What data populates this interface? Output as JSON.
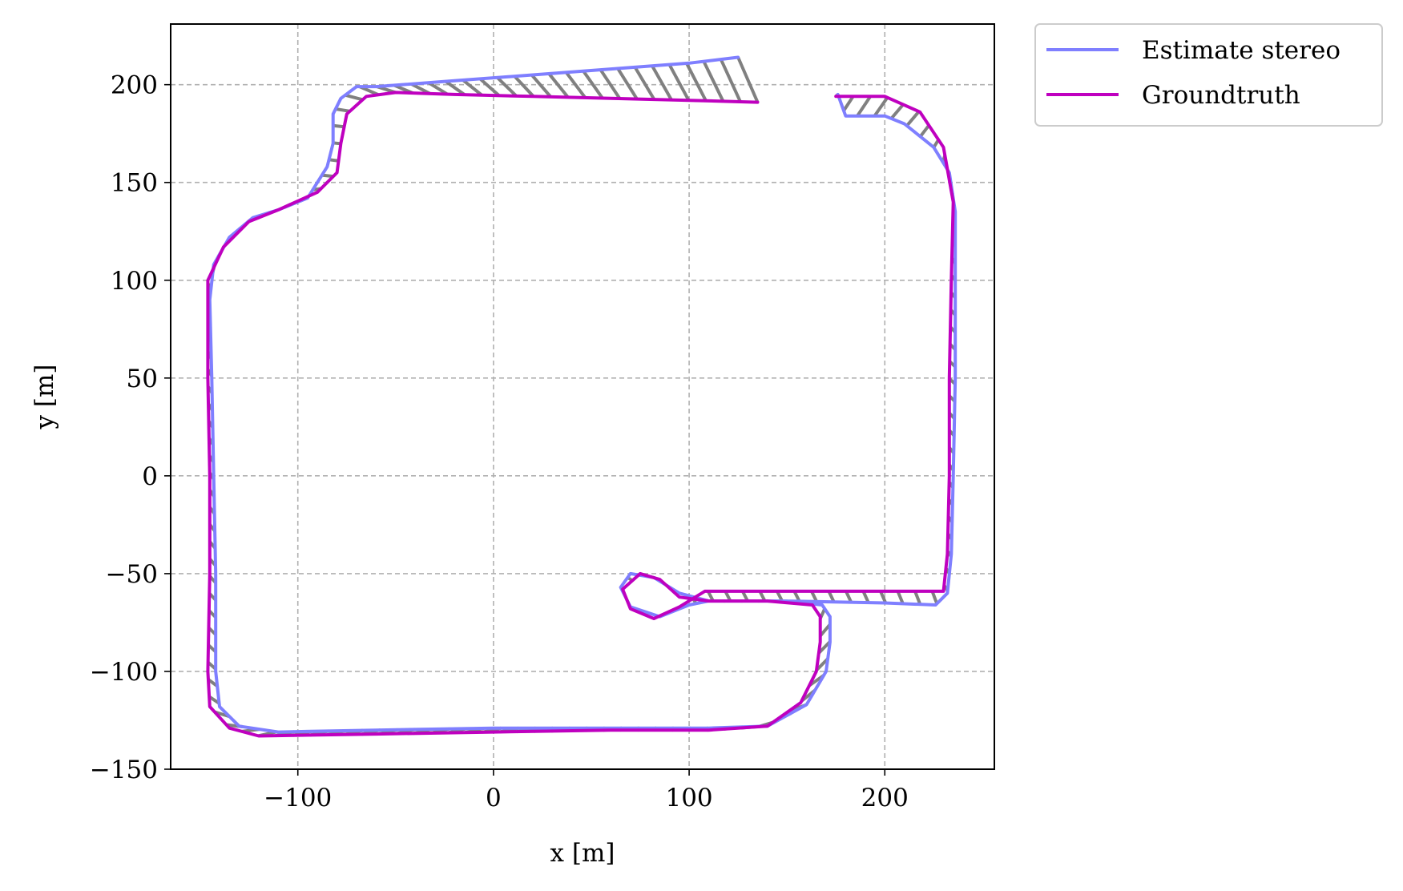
{
  "chart_data": {
    "type": "line",
    "xlabel": "x [m]",
    "ylabel": "y [m]",
    "xlim": [
      -165,
      256
    ],
    "ylim": [
      -150,
      231
    ],
    "xticks": [
      -100,
      0,
      100,
      200
    ],
    "yticks": [
      -150,
      -100,
      -50,
      0,
      50,
      100,
      150,
      200
    ],
    "xtick_labels": [
      "−100",
      "0",
      "100",
      "200"
    ],
    "ytick_labels": [
      "−150",
      "−100",
      "−50",
      "0",
      "50",
      "100",
      "150",
      "200"
    ],
    "grid": true,
    "legend_position": "outside-top-right",
    "error_color": "#808080",
    "series": [
      {
        "name": "Estimate stereo",
        "color": "#7f7fff",
        "points": [
          [
            125,
            214
          ],
          [
            100,
            211
          ],
          [
            60,
            208
          ],
          [
            20,
            205
          ],
          [
            -20,
            202
          ],
          [
            -60,
            199
          ],
          [
            -70,
            199
          ],
          [
            -78,
            193
          ],
          [
            -82,
            185
          ],
          [
            -82,
            170
          ],
          [
            -85,
            158
          ],
          [
            -95,
            142
          ],
          [
            -110,
            136
          ],
          [
            -123,
            132
          ],
          [
            -135,
            122
          ],
          [
            -143,
            108
          ],
          [
            -145,
            90
          ],
          [
            -144,
            50
          ],
          [
            -143,
            0
          ],
          [
            -142,
            -50
          ],
          [
            -142,
            -100
          ],
          [
            -140,
            -118
          ],
          [
            -130,
            -128
          ],
          [
            -110,
            -131
          ],
          [
            -60,
            -130
          ],
          [
            0,
            -129
          ],
          [
            60,
            -129
          ],
          [
            110,
            -129
          ],
          [
            140,
            -128
          ],
          [
            160,
            -117
          ],
          [
            170,
            -100
          ],
          [
            172,
            -85
          ],
          [
            172,
            -72
          ],
          [
            168,
            -66
          ],
          [
            150,
            -64
          ],
          [
            110,
            -64
          ],
          [
            95,
            -60
          ],
          [
            82,
            -52
          ],
          [
            70,
            -50
          ],
          [
            65,
            -57
          ],
          [
            70,
            -67
          ],
          [
            85,
            -72
          ],
          [
            100,
            -66
          ],
          [
            110,
            -64
          ],
          [
            150,
            -64
          ],
          [
            200,
            -65
          ],
          [
            226,
            -66
          ],
          [
            232,
            -60
          ],
          [
            234,
            -40
          ],
          [
            235,
            0
          ],
          [
            236,
            50
          ],
          [
            236,
            100
          ],
          [
            236,
            135
          ],
          [
            233,
            155
          ],
          [
            225,
            168
          ],
          [
            210,
            180
          ],
          [
            200,
            184
          ],
          [
            180,
            184
          ],
          [
            176,
            195
          ]
        ]
      },
      {
        "name": "Groundtruth",
        "color": "#bf00bf",
        "points": [
          [
            135,
            191
          ],
          [
            100,
            192
          ],
          [
            60,
            193
          ],
          [
            20,
            194
          ],
          [
            -20,
            195
          ],
          [
            -50,
            196
          ],
          [
            -65,
            194
          ],
          [
            -75,
            185
          ],
          [
            -78,
            170
          ],
          [
            -80,
            155
          ],
          [
            -90,
            145
          ],
          [
            -110,
            136
          ],
          [
            -125,
            130
          ],
          [
            -138,
            117
          ],
          [
            -146,
            100
          ],
          [
            -146,
            50
          ],
          [
            -145,
            0
          ],
          [
            -145,
            -50
          ],
          [
            -146,
            -100
          ],
          [
            -145,
            -118
          ],
          [
            -135,
            -129
          ],
          [
            -120,
            -133
          ],
          [
            -60,
            -132
          ],
          [
            0,
            -131
          ],
          [
            60,
            -130
          ],
          [
            110,
            -130
          ],
          [
            140,
            -128
          ],
          [
            157,
            -116
          ],
          [
            165,
            -100
          ],
          [
            167,
            -85
          ],
          [
            167,
            -72
          ],
          [
            163,
            -66
          ],
          [
            140,
            -64
          ],
          [
            110,
            -64
          ],
          [
            95,
            -62
          ],
          [
            85,
            -53
          ],
          [
            75,
            -50
          ],
          [
            66,
            -58
          ],
          [
            70,
            -68
          ],
          [
            82,
            -73
          ],
          [
            95,
            -67
          ],
          [
            108,
            -59
          ],
          [
            150,
            -59
          ],
          [
            200,
            -59
          ],
          [
            230,
            -59
          ],
          [
            232,
            -40
          ],
          [
            233,
            0
          ],
          [
            233,
            50
          ],
          [
            234,
            100
          ],
          [
            235,
            140
          ],
          [
            230,
            168
          ],
          [
            218,
            186
          ],
          [
            200,
            194
          ],
          [
            175,
            194
          ]
        ]
      }
    ]
  }
}
